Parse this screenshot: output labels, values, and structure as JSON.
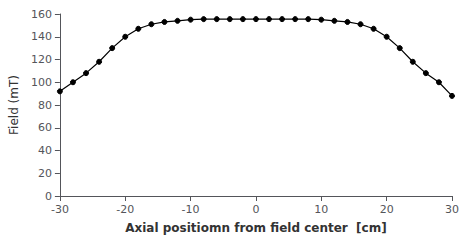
{
  "chart_data": {
    "type": "line",
    "xlabel": "Axial positiomn from field center  [cm]",
    "ylabel": "Field (mT)",
    "x": [
      -30,
      -28,
      -26,
      -24,
      -22,
      -20,
      -18,
      -16,
      -14,
      -12,
      -10,
      -8,
      -6,
      -4,
      -2,
      0,
      2,
      4,
      6,
      8,
      10,
      12,
      14,
      16,
      18,
      20,
      22,
      24,
      26,
      28,
      30
    ],
    "values": [
      92,
      100,
      108,
      118,
      130,
      140,
      147,
      151,
      153,
      154,
      155,
      155.5,
      155.5,
      155.5,
      155.5,
      155.5,
      155.5,
      155.5,
      155.5,
      155.5,
      155,
      154,
      153,
      151,
      147,
      140,
      130,
      118,
      108,
      100,
      88
    ],
    "xlim": [
      -30,
      30
    ],
    "ylim": [
      0,
      160
    ],
    "xticks": [
      -30,
      -20,
      -10,
      0,
      10,
      20,
      30
    ],
    "yticks": [
      0,
      20,
      40,
      60,
      80,
      100,
      120,
      140,
      160
    ],
    "color": "#000000",
    "marker": "circle",
    "grid": false
  }
}
